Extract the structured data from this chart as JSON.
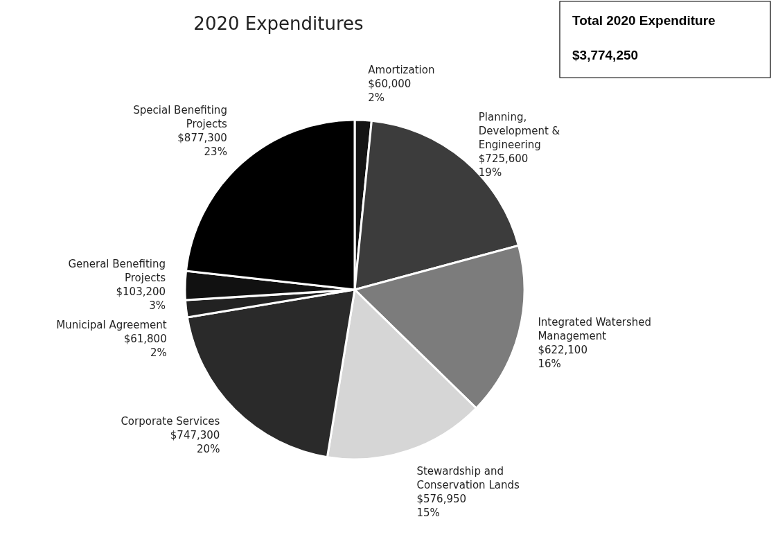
{
  "chart_data": {
    "type": "pie",
    "title": "2020 Expenditures",
    "categories": [
      "Amortization",
      "Planning, Development & Engineering",
      "Integrated Watershed Management",
      "Stewardship and Conservation Lands",
      "Corporate Services",
      "Municipal Agreement",
      "General Benefiting Projects",
      "Special Benefiting Projects"
    ],
    "values": [
      60000,
      725600,
      622100,
      576950,
      747300,
      61800,
      103200,
      877300
    ],
    "colors": [
      "#141414",
      "#3c3c3c",
      "#7c7c7c",
      "#d6d6d6",
      "#2a2a2a",
      "#222222",
      "#111111",
      "#000000"
    ],
    "value_labels": [
      "$60,000\n2%",
      "$725,600\n19%",
      "$622,100\n16%",
      "$576,950\n15%",
      "$747,300\n20%",
      "$61,800\n2%",
      "$103,200\n3%",
      "$877,300\n23%"
    ],
    "annotations": [
      "Total 2020 Expenditure",
      "$3,774,250"
    ]
  }
}
